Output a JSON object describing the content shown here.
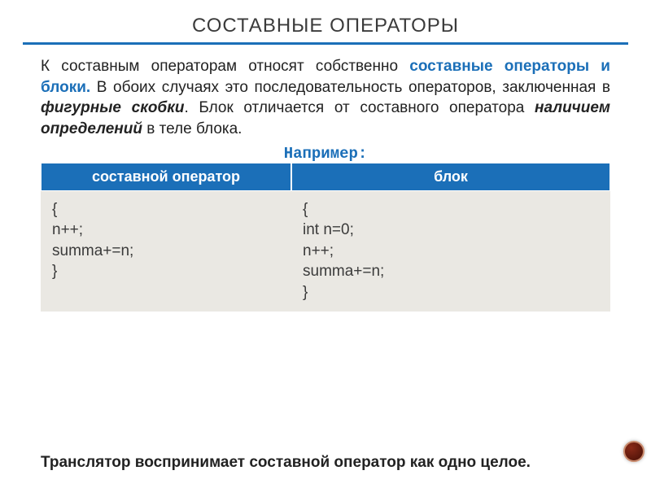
{
  "title": "СОСТАВНЫЕ ОПЕРАТОРЫ",
  "colors": {
    "accent": "#1b6fb8",
    "tableHeaderBg": "#1b6fb8",
    "tableHeaderText": "#ffffff",
    "tableBodyBg": "#eae8e3",
    "cornerDot": "#5a170b"
  },
  "paragraph": {
    "p1": "К составным операторам относят собственно ",
    "hl": "составные операторы и блоки.",
    "p2": " В обоих случаях это последовательность операторов, заключенная в ",
    "bi1": "фигурные скобки",
    "p3": ". Блок отличается от составного оператора ",
    "bi2": "наличием определений",
    "p4": " в теле блока."
  },
  "exampleLabel": "Например:",
  "table": {
    "headers": {
      "col1": "составной оператор",
      "col2": "блок"
    },
    "cells": {
      "col1": "{\nn++;\nsumma+=n;\n}",
      "col2": "{\nint n=0;\nn++;\nsumma+=n;\n}"
    },
    "widths": {
      "col1": "44%",
      "col2": "56%"
    }
  },
  "footer": "Транслятор воспринимает составной оператор как одно целое."
}
